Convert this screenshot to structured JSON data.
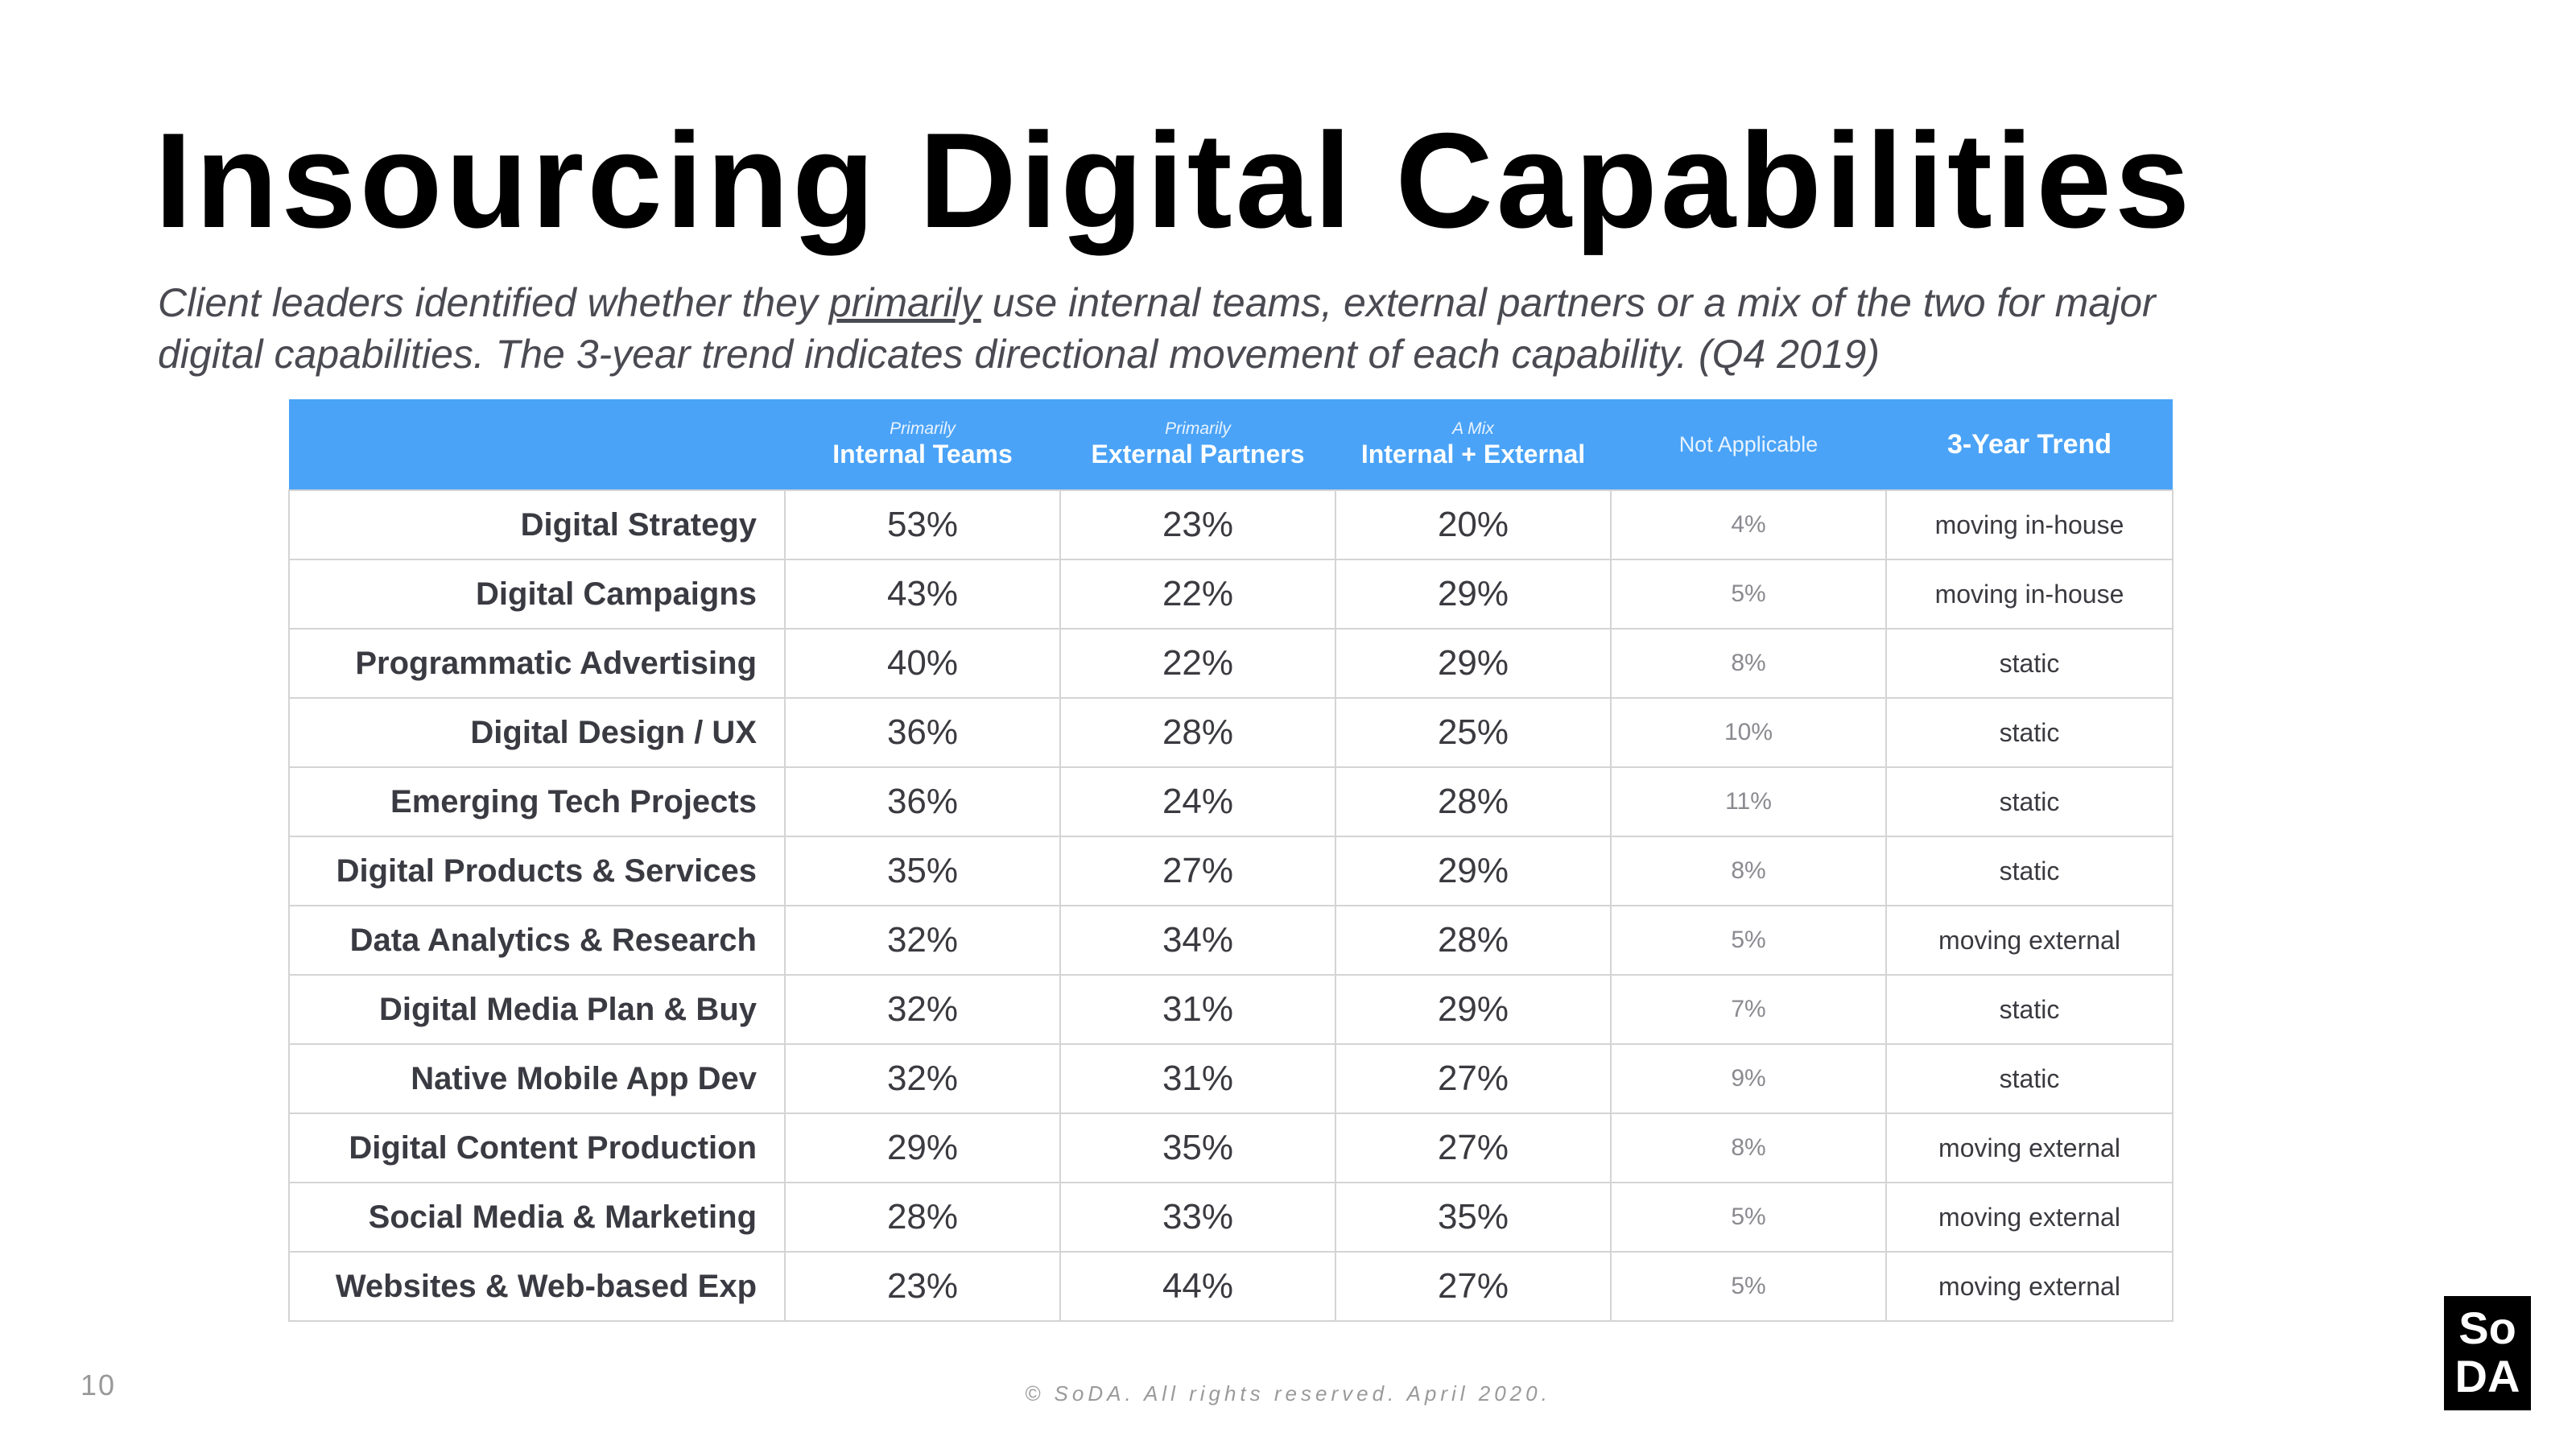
{
  "title": "Insourcing Digital Capabilities",
  "subtitle": {
    "before": "Client leaders identified whether they ",
    "underlined": "primarily",
    "after": " use internal teams, external partners or a mix of the two for major digital capabilities. The 3-year trend indicates directional movement of each capability. (Q4 2019)"
  },
  "table": {
    "headers": [
      {
        "small": "Primarily",
        "main": "Internal Teams"
      },
      {
        "small": "Primarily",
        "main": "External Partners"
      },
      {
        "small": "A Mix",
        "main": "Internal + External"
      },
      {
        "plain": "Not Applicable"
      },
      {
        "trend": "3-Year Trend"
      }
    ],
    "rows": [
      {
        "label": "Digital Strategy",
        "internal": "53%",
        "external": "23%",
        "mix": "20%",
        "na": "4%",
        "trend": "moving in-house"
      },
      {
        "label": "Digital Campaigns",
        "internal": "43%",
        "external": "22%",
        "mix": "29%",
        "na": "5%",
        "trend": "moving in-house"
      },
      {
        "label": "Programmatic Advertising",
        "internal": "40%",
        "external": "22%",
        "mix": "29%",
        "na": "8%",
        "trend": "static"
      },
      {
        "label": "Digital Design / UX",
        "internal": "36%",
        "external": "28%",
        "mix": "25%",
        "na": "10%",
        "trend": "static"
      },
      {
        "label": "Emerging Tech  Projects",
        "internal": "36%",
        "external": "24%",
        "mix": "28%",
        "na": "11%",
        "trend": "static"
      },
      {
        "label": "Digital Products & Services",
        "internal": "35%",
        "external": "27%",
        "mix": "29%",
        "na": "8%",
        "trend": "static"
      },
      {
        "label": "Data Analytics & Research",
        "internal": "32%",
        "external": "34%",
        "mix": "28%",
        "na": "5%",
        "trend": "moving external"
      },
      {
        "label": "Digital Media Plan & Buy",
        "internal": "32%",
        "external": "31%",
        "mix": "29%",
        "na": "7%",
        "trend": "static"
      },
      {
        "label": "Native Mobile App Dev",
        "internal": "32%",
        "external": "31%",
        "mix": "27%",
        "na": "9%",
        "trend": "static"
      },
      {
        "label": "Digital Content Production",
        "internal": "29%",
        "external": "35%",
        "mix": "27%",
        "na": "8%",
        "trend": "moving external"
      },
      {
        "label": "Social Media & Marketing",
        "internal": "28%",
        "external": "33%",
        "mix": "35%",
        "na": "5%",
        "trend": "moving external"
      },
      {
        "label": "Websites & Web-based Exp",
        "internal": "23%",
        "external": "44%",
        "mix": "27%",
        "na": "5%",
        "trend": "moving external"
      }
    ]
  },
  "page_number": "10",
  "footer": "© SoDA. All rights reserved. April 2020.",
  "logo": {
    "line1": "So",
    "line2": "DA"
  },
  "colors": {
    "header_bg": "#4aa3f7",
    "title": "#000000",
    "subtitle": "#4a4a52",
    "grid": "#d4d4d4"
  }
}
